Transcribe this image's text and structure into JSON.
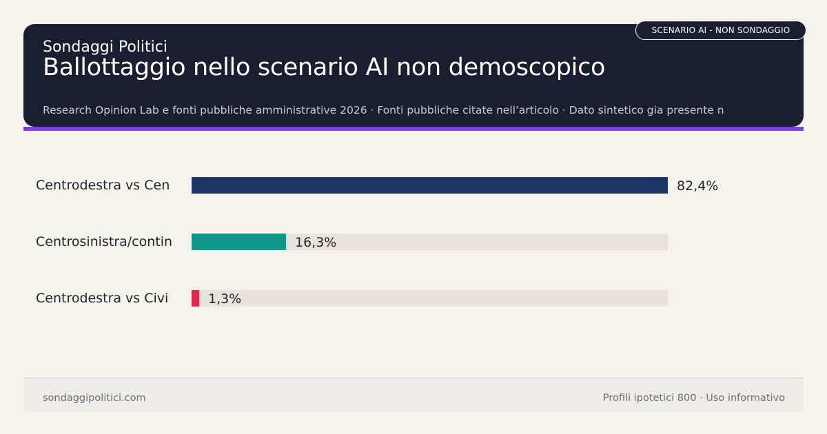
{
  "header": {
    "brand": "Sondaggi Politici",
    "title": "Ballottaggio nello scenario AI non demoscopico",
    "badge": "SCENARIO AI - NON SONDAGGIO",
    "sources": "Research Opinion Lab e fonti pubbliche amministrative 2026 · Fonti pubbliche citate nell’articolo · Dato sintetico gia presente n"
  },
  "colors": {
    "header_bg": "#1b1d31",
    "accent": "#7b3fe4",
    "track": "#e8e3dc",
    "page_bg": "#f6f2ec"
  },
  "chart_data": {
    "type": "bar",
    "orientation": "horizontal",
    "categories": [
      "Centrodestra vs Cen",
      "Centrosinistra/contin",
      "Centrodestra vs Civi"
    ],
    "values": [
      82.4,
      16.3,
      1.3
    ],
    "value_labels": [
      "82,4%",
      "16,3%",
      "1,3%"
    ],
    "colors": [
      "#1c3766",
      "#0f978a",
      "#e6254b"
    ],
    "xlim": [
      0,
      82.4
    ],
    "grid": false,
    "legend": "none"
  },
  "footer": {
    "left": "sondaggipolitici.com",
    "right": "Profili ipotetici 800 · Uso informativo"
  }
}
